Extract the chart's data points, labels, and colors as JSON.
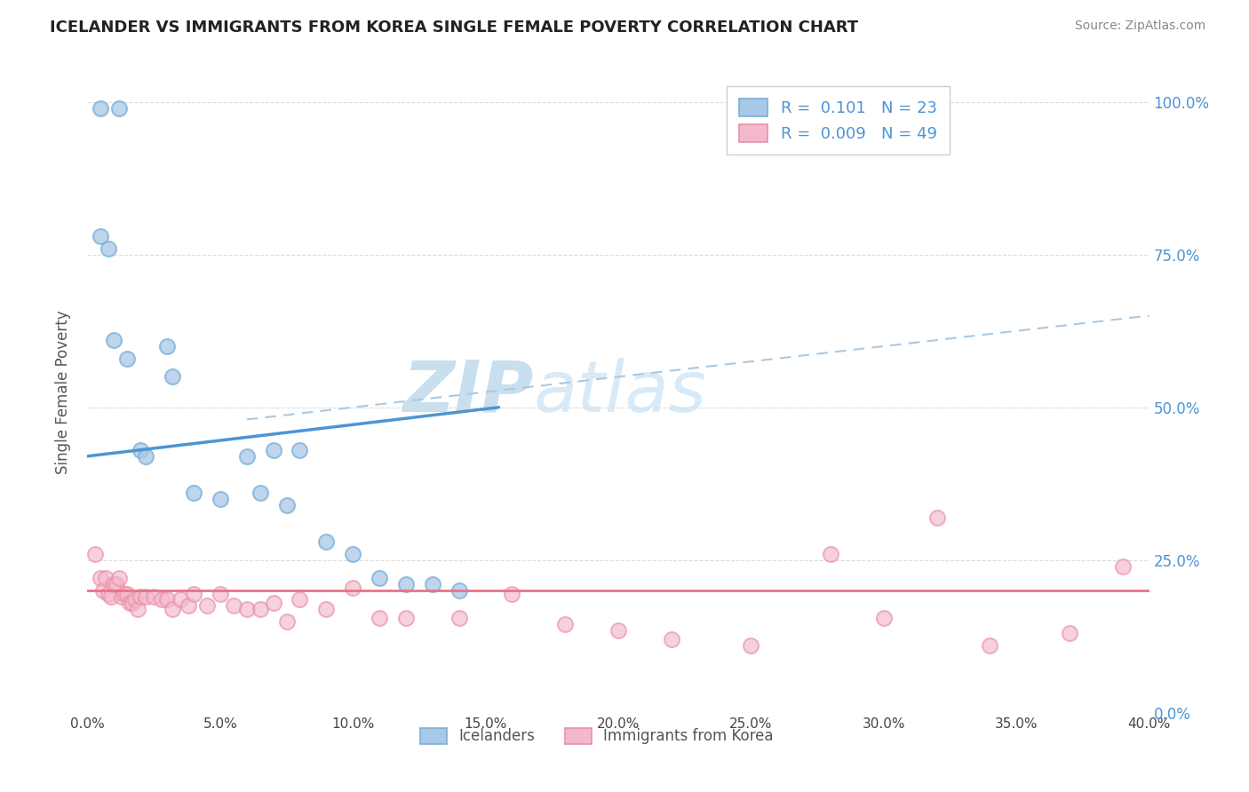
{
  "title": "ICELANDER VS IMMIGRANTS FROM KOREA SINGLE FEMALE POVERTY CORRELATION CHART",
  "source": "Source: ZipAtlas.com",
  "ylabel": "Single Female Poverty",
  "background_color": "#ffffff",
  "blue_color": "#a8c8e8",
  "blue_edge_color": "#7bafd4",
  "blue_line_color": "#4d94d4",
  "pink_color": "#f4b8cc",
  "pink_edge_color": "#e890a8",
  "pink_line_color": "#e8728a",
  "dashed_line_color": "#aac8e0",
  "watermark_text": "ZIPatlas",
  "watermark_color": "#dceef8",
  "legend_r_blue": "0.101",
  "legend_n_blue": "23",
  "legend_r_pink": "0.009",
  "legend_n_pink": "49",
  "legend_text_color": "#4d94d4",
  "blue_scatter_x": [
    0.005,
    0.012,
    0.005,
    0.008,
    0.01,
    0.015,
    0.02,
    0.022,
    0.03,
    0.032,
    0.04,
    0.05,
    0.06,
    0.065,
    0.07,
    0.075,
    0.08,
    0.09,
    0.1,
    0.11,
    0.12,
    0.13,
    0.14
  ],
  "blue_scatter_y": [
    0.99,
    0.99,
    0.78,
    0.76,
    0.61,
    0.58,
    0.43,
    0.42,
    0.6,
    0.55,
    0.36,
    0.35,
    0.42,
    0.36,
    0.43,
    0.34,
    0.43,
    0.28,
    0.26,
    0.22,
    0.21,
    0.21,
    0.2
  ],
  "pink_scatter_x": [
    0.003,
    0.005,
    0.006,
    0.007,
    0.008,
    0.009,
    0.01,
    0.011,
    0.012,
    0.013,
    0.014,
    0.015,
    0.016,
    0.017,
    0.018,
    0.019,
    0.02,
    0.022,
    0.025,
    0.028,
    0.03,
    0.032,
    0.035,
    0.038,
    0.04,
    0.045,
    0.05,
    0.055,
    0.06,
    0.065,
    0.07,
    0.075,
    0.08,
    0.09,
    0.1,
    0.11,
    0.12,
    0.14,
    0.16,
    0.18,
    0.2,
    0.22,
    0.25,
    0.28,
    0.3,
    0.32,
    0.34,
    0.37,
    0.39
  ],
  "pink_scatter_y": [
    0.26,
    0.22,
    0.2,
    0.22,
    0.195,
    0.19,
    0.21,
    0.21,
    0.22,
    0.19,
    0.195,
    0.195,
    0.18,
    0.18,
    0.185,
    0.17,
    0.19,
    0.19,
    0.19,
    0.185,
    0.185,
    0.17,
    0.185,
    0.175,
    0.195,
    0.175,
    0.195,
    0.175,
    0.17,
    0.17,
    0.18,
    0.15,
    0.185,
    0.17,
    0.205,
    0.155,
    0.155,
    0.155,
    0.195,
    0.145,
    0.135,
    0.12,
    0.11,
    0.26,
    0.155,
    0.32,
    0.11,
    0.13,
    0.24
  ],
  "blue_trendline_x": [
    0.0,
    0.155
  ],
  "blue_trendline_y": [
    0.42,
    0.5
  ],
  "pink_trendline_y": [
    0.2,
    0.2
  ],
  "dashed_trendline_x": [
    0.06,
    0.4
  ],
  "dashed_trendline_y": [
    0.48,
    0.65
  ],
  "xlim": [
    0.0,
    0.4
  ],
  "ylim": [
    0.0,
    1.05
  ],
  "x_ticks": [
    0.0,
    0.05,
    0.1,
    0.15,
    0.2,
    0.25,
    0.3,
    0.35,
    0.4
  ],
  "y_ticks": [
    0.0,
    0.25,
    0.5,
    0.75,
    1.0
  ]
}
